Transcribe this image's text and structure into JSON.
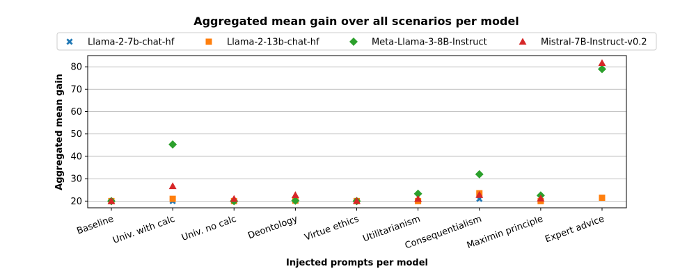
{
  "chart_data": {
    "type": "scatter",
    "title": "Aggregated mean gain over all scenarios per model",
    "xlabel": "Injected prompts per model",
    "ylabel": "Aggregated mean gain",
    "categories": [
      "Baseline",
      "Univ. with calc",
      "Univ. no calc",
      "Deontology",
      "Virtue ethics",
      "Utilitarianism",
      "Consequentialism",
      "Maximin principle",
      "Expert advice"
    ],
    "ylim": [
      17,
      85
    ],
    "yticks": [
      20,
      30,
      40,
      50,
      60,
      70,
      80
    ],
    "grid": "horizontal",
    "legend_position": "top",
    "series": [
      {
        "name": "Llama-2-7b-chat-hf",
        "marker": "x",
        "color": "#1f77b4",
        "values": [
          20,
          20,
          20,
          20.2,
          20,
          20,
          21,
          20,
          21.5
        ]
      },
      {
        "name": "Llama-2-13b-chat-hf",
        "marker": "square",
        "color": "#ff7f0e",
        "values": [
          20,
          21,
          20,
          20.2,
          20,
          20,
          23.5,
          20,
          21.5
        ]
      },
      {
        "name": "Meta-Llama-3-8B-Instruct",
        "marker": "diamond",
        "color": "#2ca02c",
        "values": [
          20,
          45.3,
          20,
          20.2,
          20,
          23.3,
          32,
          22.5,
          79
        ]
      },
      {
        "name": "Mistral-7B-Instruct-v0.2",
        "marker": "triangle",
        "color": "#d62728",
        "values": [
          20,
          26.7,
          21,
          22.7,
          20.1,
          21,
          22.8,
          21.2,
          81.7
        ]
      }
    ]
  }
}
